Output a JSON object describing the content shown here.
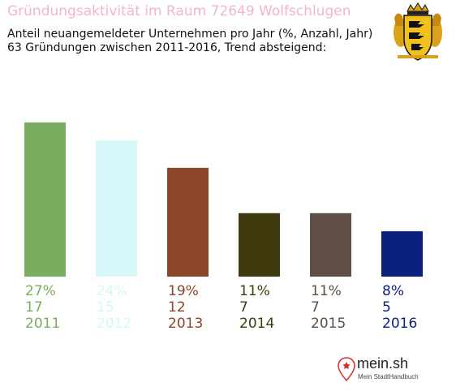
{
  "header": {
    "title": "Gründungsaktivität im Raum 72649 Wolfschlugen",
    "subtitle_line1": "Anteil neuangemeldeter Unternehmen pro Jahr (%, Anzahl, Jahr)",
    "subtitle_line2": "63 Gründungen zwischen 2011-2016, Trend absteigend:"
  },
  "coat_of_arms": {
    "icon": "baden-wuerttemberg-coat-of-arms-icon"
  },
  "logo": {
    "name": "mein.sh",
    "tagline": "Mein StadtHandbuch",
    "icon": "location-pin-icon"
  },
  "chart_data": {
    "type": "bar",
    "title": "Gründungsaktivität im Raum 72649 Wolfschlugen",
    "categories": [
      "2011",
      "2012",
      "2013",
      "2014",
      "2015",
      "2016"
    ],
    "values": [
      17,
      15,
      12,
      7,
      7,
      5
    ],
    "percent_labels": [
      "27%",
      "24%",
      "19%",
      "11%",
      "11%",
      "8%"
    ],
    "colors": [
      "#7aad5f",
      "#d6f7f7",
      "#8b4529",
      "#3f3b0e",
      "#5f4e43",
      "#0b1f7d"
    ],
    "ylim": [
      0,
      17
    ],
    "grid": false,
    "legend": "none"
  }
}
